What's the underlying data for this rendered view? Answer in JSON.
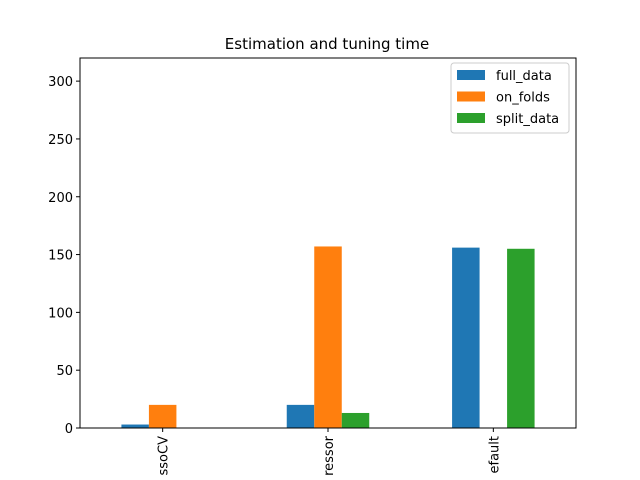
{
  "chart_data": {
    "type": "bar",
    "title": "Estimation and tuning time",
    "xlabel": "",
    "ylabel": "",
    "categories": [
      "LassoCV",
      "Regressor",
      "Default"
    ],
    "tick_labels_visible": [
      "ssoCV",
      "ressor",
      "efault"
    ],
    "series": [
      {
        "name": "full_data",
        "color": "#1f77b4",
        "values": [
          3,
          20,
          156
        ]
      },
      {
        "name": "on_folds",
        "color": "#ff7f0e",
        "values": [
          20,
          157,
          0
        ]
      },
      {
        "name": "split_data",
        "color": "#2ca02c",
        "values": [
          0,
          13,
          155
        ]
      }
    ],
    "ylim": [
      0,
      320
    ],
    "yticks": [
      0,
      50,
      100,
      150,
      200,
      250,
      300
    ],
    "grid": false,
    "legend_position": "top-right"
  }
}
